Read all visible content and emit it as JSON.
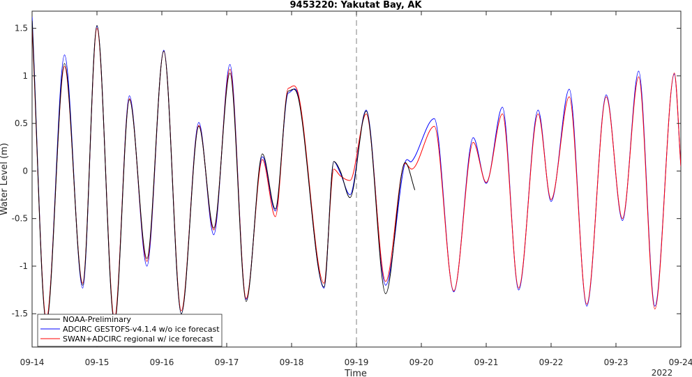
{
  "chart_data": {
    "type": "line",
    "title": "9453220: Yakutat Bay, AK",
    "xlabel": "Time",
    "ylabel": "Water Level (m)",
    "x_tick_labels": [
      "09-14",
      "09-15",
      "09-16",
      "09-17",
      "09-18",
      "09-19",
      "09-20",
      "09-21",
      "09-22",
      "09-23",
      "09-24"
    ],
    "x_secondary_label": "2022",
    "x_range_days": [
      14,
      24
    ],
    "ylim": [
      -1.85,
      1.68
    ],
    "y_ticks": [
      -1.5,
      -1,
      -0.5,
      0,
      0.5,
      1,
      1.5
    ],
    "y_tick_labels": [
      "-1.5",
      "-1",
      "-0.5",
      "0",
      "0.5",
      "1",
      "1.5"
    ],
    "forecast_start_marker": "09-19",
    "forecast_start_day": 19.0,
    "grid": false,
    "legend_position": "bottom-left",
    "colors": {
      "observed": "#000000",
      "gestofs": "#0000ff",
      "regional": "#ff0000",
      "marker": "#808080",
      "axis": "#262626"
    },
    "series": [
      {
        "name": "NOAA-Preliminary",
        "color": "#000000",
        "style": "solid",
        "x": [
          14.0,
          14.22,
          14.5,
          14.78,
          15.0,
          15.27,
          15.5,
          15.77,
          16.03,
          16.3,
          16.57,
          16.8,
          17.05,
          17.3,
          17.55,
          17.75,
          17.95,
          18.1,
          18.5,
          18.65,
          18.75,
          18.9,
          19.15,
          19.45,
          19.75,
          19.9
        ],
        "y": [
          1.58,
          -1.6,
          1.13,
          -1.2,
          1.53,
          -1.6,
          0.75,
          -0.92,
          1.26,
          -1.5,
          0.47,
          -0.6,
          1.03,
          -1.37,
          0.18,
          -0.4,
          0.84,
          0.78,
          -1.22,
          0.1,
          0.0,
          -0.28,
          0.63,
          -1.29,
          0.09,
          -0.2
        ]
      },
      {
        "name": "ADCIRC GESTOFS-v4.1.4 w/o ice forecast",
        "color": "#0000ff",
        "style": "solid",
        "x": [
          14.0,
          14.22,
          14.5,
          14.78,
          15.0,
          15.27,
          15.5,
          15.77,
          16.03,
          16.3,
          16.57,
          16.8,
          17.05,
          17.3,
          17.55,
          17.75,
          17.95,
          18.1,
          18.5,
          18.65,
          18.75,
          18.9,
          19.15,
          19.45,
          19.75,
          19.85,
          20.2,
          20.5,
          20.8,
          21.0,
          21.25,
          21.5,
          21.8,
          22.0,
          22.28,
          22.55,
          22.85,
          23.1,
          23.35,
          23.6,
          23.9,
          24.0
        ],
        "y": [
          1.62,
          -1.58,
          1.22,
          -1.23,
          1.52,
          -1.58,
          0.79,
          -1.0,
          1.27,
          -1.5,
          0.51,
          -0.67,
          1.12,
          -1.35,
          0.15,
          -0.42,
          0.82,
          0.8,
          -1.23,
          0.1,
          -0.02,
          -0.25,
          0.64,
          -1.2,
          0.09,
          0.1,
          0.55,
          -1.27,
          0.35,
          -0.13,
          0.67,
          -1.25,
          0.64,
          -0.32,
          0.86,
          -1.42,
          0.8,
          -0.52,
          1.05,
          -1.42,
          1.02,
          0.05
        ]
      },
      {
        "name": "SWAN+ADCIRC regional w/ ice forecast",
        "color": "#ff0000",
        "style": "solid",
        "x": [
          14.0,
          14.22,
          14.5,
          14.78,
          15.0,
          15.27,
          15.5,
          15.77,
          16.03,
          16.3,
          16.57,
          16.8,
          17.05,
          17.3,
          17.55,
          17.75,
          17.95,
          18.1,
          18.5,
          18.65,
          18.75,
          18.9,
          19.15,
          19.45,
          19.75,
          19.85,
          20.2,
          20.5,
          20.8,
          21.0,
          21.25,
          21.5,
          21.8,
          22.0,
          22.28,
          22.55,
          22.85,
          23.1,
          23.35,
          23.6,
          23.9,
          24.0
        ],
        "y": [
          1.52,
          -1.55,
          1.1,
          -1.18,
          1.5,
          -1.55,
          0.76,
          -0.95,
          1.26,
          -1.47,
          0.48,
          -0.62,
          1.07,
          -1.34,
          0.12,
          -0.48,
          0.87,
          0.82,
          -1.18,
          0.02,
          -0.05,
          -0.1,
          0.6,
          -1.16,
          0.08,
          0.02,
          0.47,
          -1.26,
          0.3,
          -0.12,
          0.6,
          -1.23,
          0.6,
          -0.3,
          0.78,
          -1.4,
          0.78,
          -0.5,
          0.99,
          -1.45,
          1.03,
          0.05
        ]
      }
    ]
  }
}
